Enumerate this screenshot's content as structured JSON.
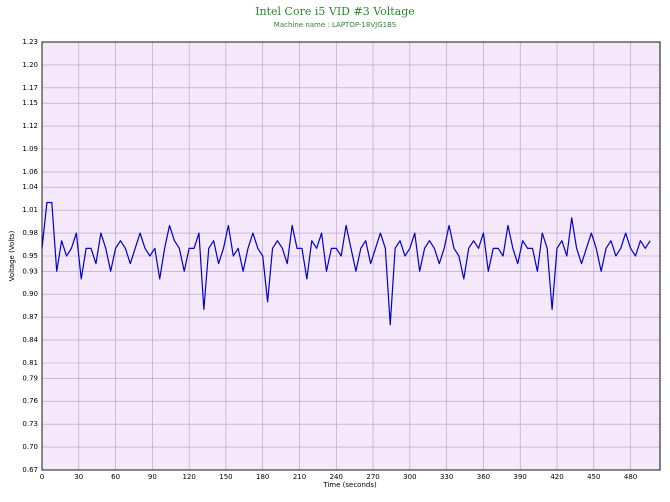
{
  "chart_data": {
    "type": "line",
    "title": "Intel Core i5 VID #3 Voltage",
    "subtitle": "Machine name : LAPTOP-18VJG1BS",
    "x_label": "Time (seconds)",
    "y_label": "Voltage (Volts)",
    "xlim": [
      0,
      504
    ],
    "xticks": [
      0,
      30,
      60,
      90,
      120,
      150,
      180,
      210,
      240,
      270,
      300,
      330,
      360,
      390,
      420,
      450,
      480
    ],
    "ylim": [
      0.67,
      1.23
    ],
    "yticks": [
      0.67,
      {
        "value": 0.7,
        "label": "0.70"
      },
      0.73,
      0.76,
      0.79,
      0.81,
      0.84,
      0.87,
      {
        "value": 0.9,
        "label": "0.90"
      },
      0.93,
      0.95,
      0.98,
      1.01,
      1.04,
      1.06,
      1.09,
      1.12,
      1.15,
      1.17,
      {
        "value": 1.2,
        "label": "1.20"
      },
      1.23
    ],
    "grid": true,
    "x": [
      0,
      4,
      8,
      12,
      16,
      20,
      24,
      28,
      32,
      36,
      40,
      44,
      48,
      52,
      56,
      60,
      64,
      68,
      72,
      76,
      80,
      84,
      88,
      92,
      96,
      100,
      104,
      108,
      112,
      116,
      120,
      124,
      128,
      132,
      136,
      140,
      144,
      148,
      152,
      156,
      160,
      164,
      168,
      172,
      176,
      180,
      184,
      188,
      192,
      196,
      200,
      204,
      208,
      212,
      216,
      220,
      224,
      228,
      232,
      236,
      240,
      244,
      248,
      252,
      256,
      260,
      264,
      268,
      272,
      276,
      280,
      284,
      288,
      292,
      296,
      300,
      304,
      308,
      312,
      316,
      320,
      324,
      328,
      332,
      336,
      340,
      344,
      348,
      352,
      356,
      360,
      364,
      368,
      372,
      376,
      380,
      384,
      388,
      392,
      396,
      400,
      404,
      408,
      412,
      416,
      420,
      424,
      428,
      432,
      436,
      440,
      444,
      448,
      452,
      456,
      460,
      464,
      468,
      472,
      476,
      480,
      484,
      488,
      492,
      496
    ],
    "series": [
      {
        "name": "VID #3",
        "color": "#0000cc",
        "values": [
          0.96,
          1.02,
          1.02,
          0.93,
          0.97,
          0.95,
          0.96,
          0.98,
          0.92,
          0.96,
          0.96,
          0.94,
          0.98,
          0.96,
          0.93,
          0.96,
          0.97,
          0.96,
          0.94,
          0.96,
          0.98,
          0.96,
          0.95,
          0.96,
          0.92,
          0.96,
          0.99,
          0.97,
          0.96,
          0.93,
          0.96,
          0.96,
          0.98,
          0.88,
          0.96,
          0.97,
          0.94,
          0.96,
          0.99,
          0.95,
          0.96,
          0.93,
          0.96,
          0.98,
          0.96,
          0.95,
          0.89,
          0.96,
          0.97,
          0.96,
          0.94,
          0.99,
          0.96,
          0.96,
          0.92,
          0.97,
          0.96,
          0.98,
          0.93,
          0.96,
          0.96,
          0.95,
          0.99,
          0.96,
          0.93,
          0.96,
          0.97,
          0.94,
          0.96,
          0.98,
          0.96,
          0.86,
          0.96,
          0.97,
          0.95,
          0.96,
          0.98,
          0.93,
          0.96,
          0.97,
          0.96,
          0.94,
          0.96,
          0.99,
          0.96,
          0.95,
          0.92,
          0.96,
          0.97,
          0.96,
          0.98,
          0.93,
          0.96,
          0.96,
          0.95,
          0.99,
          0.96,
          0.94,
          0.97,
          0.96,
          0.96,
          0.93,
          0.98,
          0.96,
          0.88,
          0.96,
          0.97,
          0.95,
          1.0,
          0.96,
          0.94,
          0.96,
          0.98,
          0.96,
          0.93,
          0.96,
          0.97,
          0.95,
          0.96,
          0.98,
          0.96,
          0.95,
          0.97,
          0.96,
          0.97
        ]
      }
    ]
  }
}
